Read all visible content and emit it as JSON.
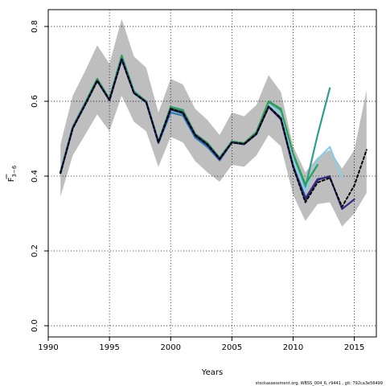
{
  "chart_data": {
    "type": "line",
    "xlabel": "Years",
    "ylabel_main": "F",
    "ylabel_sub": "3−6",
    "xlim": [
      1990,
      2016.8
    ],
    "ylim": [
      -0.03,
      0.845
    ],
    "x_ticks": [
      1990,
      1995,
      2000,
      2005,
      2010,
      2015
    ],
    "y_ticks": [
      0.0,
      0.2,
      0.4,
      0.6,
      0.8
    ],
    "x_tick_labels": [
      "1990",
      "1995",
      "2000",
      "2005",
      "2010",
      "2015"
    ],
    "y_tick_labels": [
      "0.0",
      "0.2",
      "0.4",
      "0.6",
      "0.8"
    ],
    "grid": true,
    "footer": "stockassessment.org, WBSS_004_6, r9441 , git: 792ca3e56499",
    "band": {
      "color": "#bebebe",
      "x": [
        1991,
        1992,
        1993,
        1994,
        1995,
        1996,
        1997,
        1998,
        1999,
        2000,
        2001,
        2002,
        2003,
        2004,
        2005,
        2006,
        2007,
        2008,
        2009,
        2010,
        2011,
        2012,
        2013,
        2014,
        2015,
        2016
      ],
      "upper": [
        0.485,
        0.615,
        0.68,
        0.75,
        0.7,
        0.82,
        0.72,
        0.69,
        0.57,
        0.66,
        0.645,
        0.58,
        0.55,
        0.51,
        0.57,
        0.56,
        0.59,
        0.67,
        0.625,
        0.48,
        0.41,
        0.45,
        0.47,
        0.42,
        0.47,
        0.63
      ],
      "lower": [
        0.345,
        0.455,
        0.51,
        0.565,
        0.52,
        0.615,
        0.545,
        0.52,
        0.425,
        0.505,
        0.49,
        0.44,
        0.41,
        0.385,
        0.43,
        0.425,
        0.455,
        0.51,
        0.48,
        0.35,
        0.28,
        0.325,
        0.33,
        0.265,
        0.3,
        0.355
      ]
    },
    "series": [
      {
        "color": "#2e9e8e",
        "x": [
          1991,
          1992,
          1993,
          1994,
          1995,
          1996,
          1997,
          1998,
          1999,
          2000,
          2001,
          2002,
          2003,
          2004,
          2005,
          2006,
          2007,
          2008,
          2009,
          2010,
          2011,
          2012,
          2013
        ],
        "y": [
          0.412,
          0.532,
          0.595,
          0.66,
          0.607,
          0.722,
          0.627,
          0.6,
          0.493,
          0.585,
          0.577,
          0.513,
          0.489,
          0.449,
          0.493,
          0.488,
          0.518,
          0.598,
          0.576,
          0.45,
          0.37,
          0.51,
          0.635
        ]
      },
      {
        "color": "#87ceeb",
        "x": [
          1991,
          1992,
          1993,
          1994,
          1995,
          1996,
          1997,
          1998,
          1999,
          2000,
          2001,
          2002,
          2003,
          2004,
          2005,
          2006,
          2007,
          2008,
          2009,
          2010,
          2011,
          2012,
          2013,
          2014
        ],
        "y": [
          0.41,
          0.53,
          0.592,
          0.655,
          0.603,
          0.715,
          0.622,
          0.595,
          0.49,
          0.575,
          0.568,
          0.505,
          0.482,
          0.445,
          0.49,
          0.485,
          0.512,
          0.59,
          0.568,
          0.445,
          0.36,
          0.445,
          0.478,
          0.395
        ]
      },
      {
        "color": "#2aa050",
        "x": [
          1991,
          1992,
          1993,
          1994,
          1995,
          1996,
          1997,
          1998,
          1999,
          2000,
          2001,
          2002,
          2003,
          2004,
          2005,
          2006,
          2007,
          2008,
          2009,
          2010,
          2011,
          2012
        ],
        "y": [
          0.41,
          0.53,
          0.595,
          0.66,
          0.605,
          0.722,
          0.625,
          0.6,
          0.49,
          0.585,
          0.575,
          0.512,
          0.488,
          0.448,
          0.493,
          0.488,
          0.518,
          0.6,
          0.58,
          0.46,
          0.378,
          0.43
        ]
      },
      {
        "color": "#2a7ab8",
        "x": [
          1991,
          1992,
          1993,
          1994,
          1995,
          1996,
          1997,
          1998,
          1999,
          2000,
          2001,
          2002,
          2003,
          2004,
          2005,
          2006,
          2007,
          2008,
          2009,
          2010,
          2011
        ],
        "y": [
          0.408,
          0.528,
          0.592,
          0.655,
          0.603,
          0.715,
          0.622,
          0.597,
          0.488,
          0.57,
          0.562,
          0.503,
          0.478,
          0.442,
          0.49,
          0.485,
          0.513,
          0.585,
          0.555,
          0.425,
          0.345
        ]
      },
      {
        "color": "#1a2a60",
        "x": [
          1991,
          1992,
          1993,
          1994,
          1995,
          1996,
          1997,
          1998,
          1999,
          2000,
          2001,
          2002,
          2003,
          2004,
          2005,
          2006,
          2007,
          2008,
          2009,
          2010,
          2011,
          2012,
          2013
        ],
        "y": [
          0.408,
          0.528,
          0.59,
          0.655,
          0.603,
          0.712,
          0.622,
          0.598,
          0.49,
          0.578,
          0.568,
          0.508,
          0.483,
          0.445,
          0.49,
          0.485,
          0.512,
          0.585,
          0.552,
          0.425,
          0.335,
          0.39,
          0.4
        ]
      },
      {
        "color": "#352a87",
        "x": [
          1991,
          1992,
          1993,
          1994,
          1995,
          1996,
          1997,
          1998,
          1999,
          2000,
          2001,
          2002,
          2003,
          2004,
          2005,
          2006,
          2007,
          2008,
          2009,
          2010,
          2011,
          2012,
          2013,
          2014,
          2015
        ],
        "y": [
          0.408,
          0.528,
          0.59,
          0.655,
          0.603,
          0.712,
          0.622,
          0.598,
          0.49,
          0.58,
          0.57,
          0.51,
          0.485,
          0.446,
          0.49,
          0.486,
          0.513,
          0.586,
          0.555,
          0.428,
          0.34,
          0.392,
          0.398,
          0.312,
          0.338
        ]
      },
      {
        "color": "#000000",
        "dashed": true,
        "x": [
          1991,
          1992,
          1993,
          1994,
          1995,
          1996,
          1997,
          1998,
          1999,
          2000,
          2001,
          2002,
          2003,
          2004,
          2005,
          2006,
          2007,
          2008,
          2009,
          2010,
          2011,
          2012,
          2013,
          2014,
          2015,
          2016
        ],
        "y": [
          0.408,
          0.528,
          0.59,
          0.655,
          0.603,
          0.712,
          0.622,
          0.598,
          0.49,
          0.58,
          0.57,
          0.51,
          0.485,
          0.446,
          0.49,
          0.486,
          0.513,
          0.586,
          0.555,
          0.425,
          0.33,
          0.383,
          0.395,
          0.318,
          0.375,
          0.47
        ]
      }
    ]
  }
}
